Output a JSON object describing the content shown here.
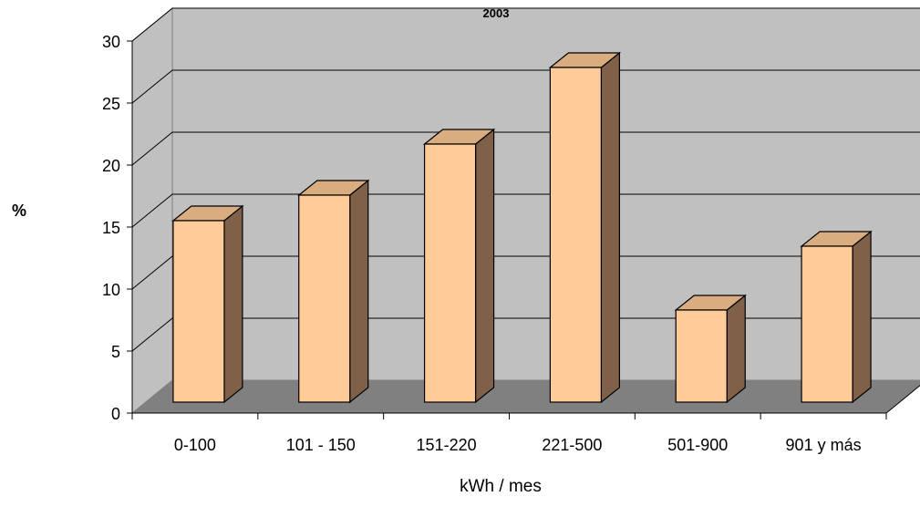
{
  "chart_data": {
    "type": "bar",
    "title": "2003",
    "xlabel": "kWh / mes",
    "ylabel": "%",
    "categories": [
      "0-100",
      "101 - 150",
      "151-220",
      "221-500",
      "501-900",
      "901 y más"
    ],
    "values": [
      15,
      17,
      21,
      27,
      8,
      13
    ],
    "ylim": [
      0,
      30
    ],
    "yticks": [
      "0",
      "5",
      "10",
      "15",
      "20",
      "25",
      "30"
    ],
    "grid": true,
    "legend": "none",
    "three_d": true
  },
  "colors": {
    "bar_front": "#FFCC99",
    "bar_side": "#7F6048",
    "bar_top": "#D9AD80",
    "wall": "#C0C0C0",
    "floor": "#808080",
    "gridline": "#000000",
    "axis": "#000000"
  }
}
